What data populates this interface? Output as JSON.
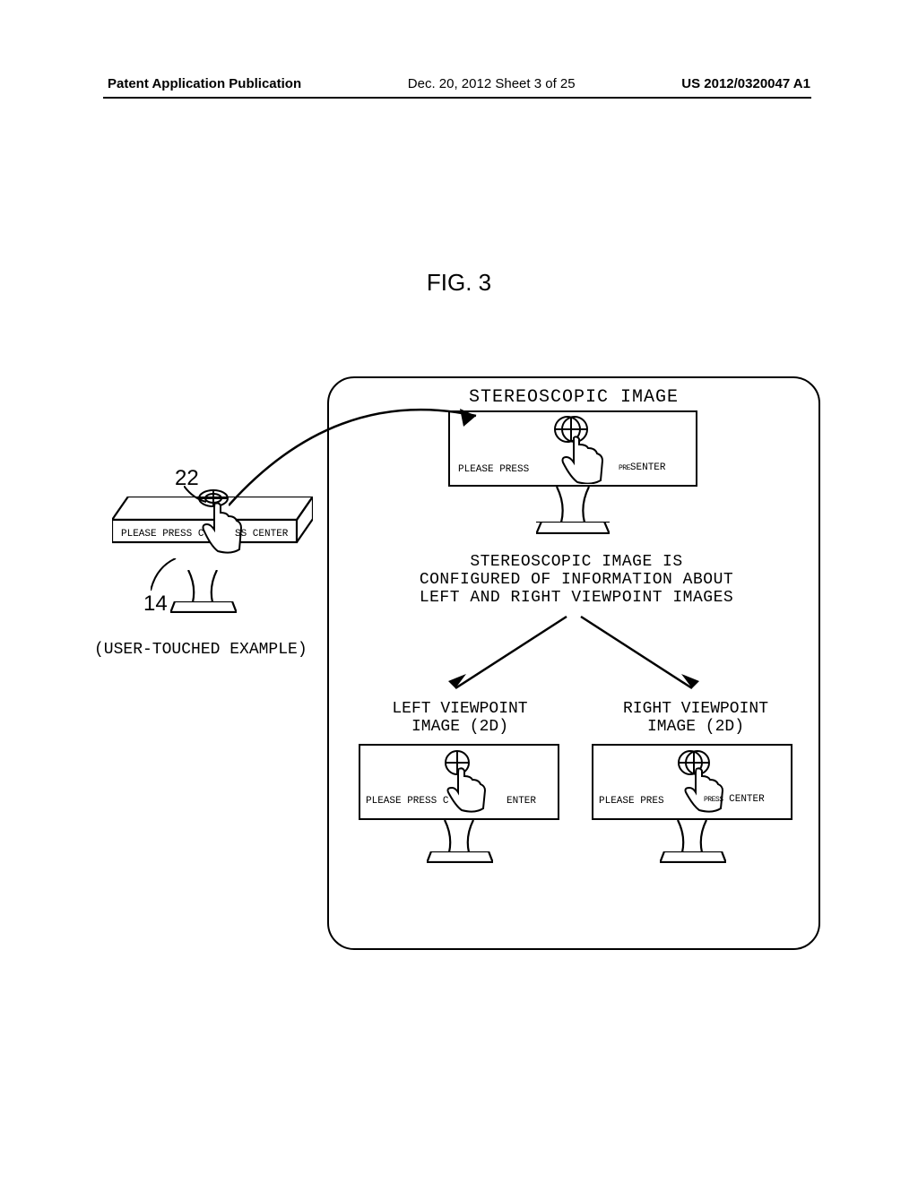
{
  "header": {
    "left": "Patent Application Publication",
    "center": "Dec. 20, 2012  Sheet 3 of 25",
    "right": "US 2012/0320047 A1"
  },
  "figure_label": "FIG. 3",
  "stereo_title": "STEREOSCOPIC IMAGE",
  "paragraph": "STEREOSCOPIC IMAGE IS\nCONFIGURED OF INFORMATION ABOUT\nLEFT AND RIGHT VIEWPOINT IMAGES",
  "left_vp": "LEFT VIEWPOINT\nIMAGE (2D)",
  "right_vp": "RIGHT VIEWPOINT\nIMAGE (2D)",
  "ref22": "22",
  "ref14": "14",
  "user_caption": "(USER-TOUCHED EXAMPLE)",
  "press": {
    "top_left": "PLEASE PRESS",
    "top_right_small": "PRE",
    "top_right_tail": "SENTER",
    "user_left": "PLEASE PRESS C",
    "user_right": "SS CENTER",
    "lvp_left": "PLEASE PRESS C",
    "lvp_right": "ENTER",
    "rvp_left": "PLEASE PRES",
    "rvp_mid": "PRESS",
    "rvp_right": " CENTER"
  },
  "colors": {
    "stroke": "#000000",
    "bg": "#ffffff"
  },
  "lines": {
    "stroke_width": 2.5
  }
}
